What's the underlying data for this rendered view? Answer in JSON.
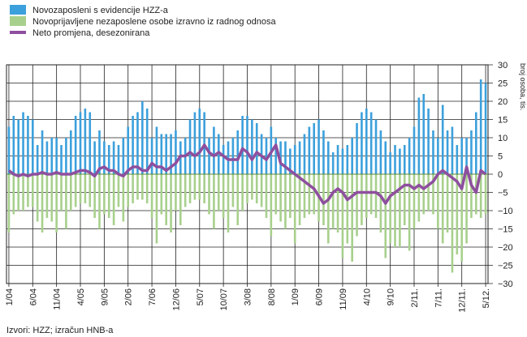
{
  "chart_data": {
    "type": "bar",
    "categories": [
      "1/04",
      null,
      null,
      null,
      null,
      "6/04",
      null,
      null,
      null,
      null,
      "11/04",
      null,
      null,
      null,
      null,
      "4/05",
      null,
      null,
      null,
      null,
      "9/05",
      null,
      null,
      null,
      null,
      "2/06",
      null,
      null,
      null,
      null,
      "7/06",
      null,
      null,
      null,
      null,
      "12/06",
      null,
      null,
      null,
      null,
      "5/07",
      null,
      null,
      null,
      null,
      "10/07",
      null,
      null,
      null,
      null,
      "3/08",
      null,
      null,
      null,
      null,
      "8/08",
      null,
      null,
      null,
      null,
      "1/09",
      null,
      null,
      null,
      null,
      "6/09",
      null,
      null,
      null,
      null,
      "11/09",
      null,
      null,
      null,
      null,
      "4/10",
      null,
      null,
      null,
      null,
      "9/10",
      null,
      null,
      null,
      null,
      "2/11.",
      null,
      null,
      null,
      null,
      "7/11.",
      null,
      null,
      null,
      null,
      "12/11.",
      null,
      null,
      null,
      null,
      "5/12."
    ],
    "series": [
      {
        "name": "Novozaposleni s evidencije HZZ-a",
        "color": "#3ca0dc",
        "values": [
          13,
          16,
          15,
          17,
          16,
          15,
          8,
          12,
          9,
          10,
          10,
          8,
          10,
          12,
          16,
          17,
          18,
          17,
          9,
          12,
          9,
          8,
          9,
          8,
          10,
          13,
          16,
          17,
          20,
          18,
          10,
          13,
          11,
          11,
          11,
          12,
          9,
          10,
          15,
          17,
          18,
          17,
          10,
          13,
          11,
          8,
          9,
          10,
          12,
          16,
          16,
          15,
          14,
          11,
          10,
          13,
          10,
          9,
          9,
          7,
          8,
          9,
          11,
          13,
          14,
          15,
          12,
          9,
          6,
          8,
          7,
          8,
          10,
          14,
          17,
          18,
          17,
          15,
          12,
          9,
          6,
          8,
          7,
          8,
          10,
          13,
          21,
          22,
          18,
          12,
          10,
          19,
          12,
          13,
          8,
          10,
          10,
          12,
          17,
          26,
          25
        ]
      },
      {
        "name": "Novoprijavljene nezaposlene osobe izravno iz radnog odnosa",
        "color": "#a8d08d",
        "values": [
          -16,
          -11,
          -10,
          -10,
          -9,
          -9,
          -13,
          -16,
          -12,
          -13,
          -16,
          -10,
          -15,
          -10,
          -9,
          -8,
          -8,
          -9,
          -12,
          -15,
          -11,
          -12,
          -14,
          -9,
          -13,
          -9,
          -8,
          -7,
          -7,
          -8,
          -12,
          -19,
          -11,
          -14,
          -16,
          -10,
          -14,
          -9,
          -8,
          -7,
          -7,
          -8,
          -11,
          -15,
          -10,
          -12,
          -16,
          -9,
          -14,
          -10,
          -8,
          -7,
          -8,
          -9,
          -12,
          -17,
          -11,
          -13,
          -15,
          -12,
          -19,
          -14,
          -12,
          -11,
          -11,
          -13,
          -14,
          -19,
          -15,
          -16,
          -23,
          -19,
          -24,
          -17,
          -14,
          -12,
          -11,
          -12,
          -16,
          -23,
          -19,
          -20,
          -20,
          -14,
          -21,
          -15,
          -13,
          -11,
          -10,
          -11,
          -15,
          -19,
          -16,
          -27,
          -22,
          -24,
          -19,
          -12,
          -11,
          -12,
          -11
        ]
      },
      {
        "name": "Neto promjena, desezonirana",
        "color": "#8e4f9e",
        "type": "line",
        "values": [
          1,
          0,
          -0.5,
          0,
          -0.5,
          0,
          0,
          0.5,
          0,
          0,
          0.5,
          0,
          0,
          0,
          0.5,
          1,
          1,
          0.5,
          -0.5,
          1.5,
          2,
          1,
          1,
          0,
          -0.5,
          1,
          2,
          2,
          1,
          1,
          3,
          2,
          2,
          1,
          2,
          3,
          5,
          5,
          6,
          5,
          6,
          8,
          6,
          5,
          6,
          5,
          4,
          4,
          4,
          7,
          6,
          4,
          6,
          5,
          4,
          6,
          8,
          3,
          2,
          1,
          0,
          -1,
          -2,
          -3,
          -4,
          -6,
          -8,
          -7,
          -5,
          -4,
          -5,
          -7,
          -6,
          -5,
          -5,
          -5,
          -5,
          -5,
          -6,
          -8,
          -6,
          -5,
          -4,
          -3,
          -3,
          -4,
          -3,
          -4,
          -3,
          -2,
          0,
          1,
          0,
          -1,
          -2,
          -4,
          2,
          -3,
          -5,
          1,
          0
        ]
      }
    ],
    "y_label": "broj osoba, tis.",
    "ylim": [
      -30,
      30
    ],
    "yticks": [
      {
        "value": -30,
        "label": "−30"
      },
      {
        "value": -25,
        "label": "−25"
      },
      {
        "value": -20,
        "label": "−20"
      },
      {
        "value": -15,
        "label": "−15"
      },
      {
        "value": -10,
        "label": "−10"
      },
      {
        "value": -5,
        "label": "−5"
      },
      0,
      5,
      10,
      15,
      20,
      25,
      30
    ],
    "grid": true,
    "legend": "top-left",
    "source": "Izvori: HZZ; izračun HNB-a"
  }
}
